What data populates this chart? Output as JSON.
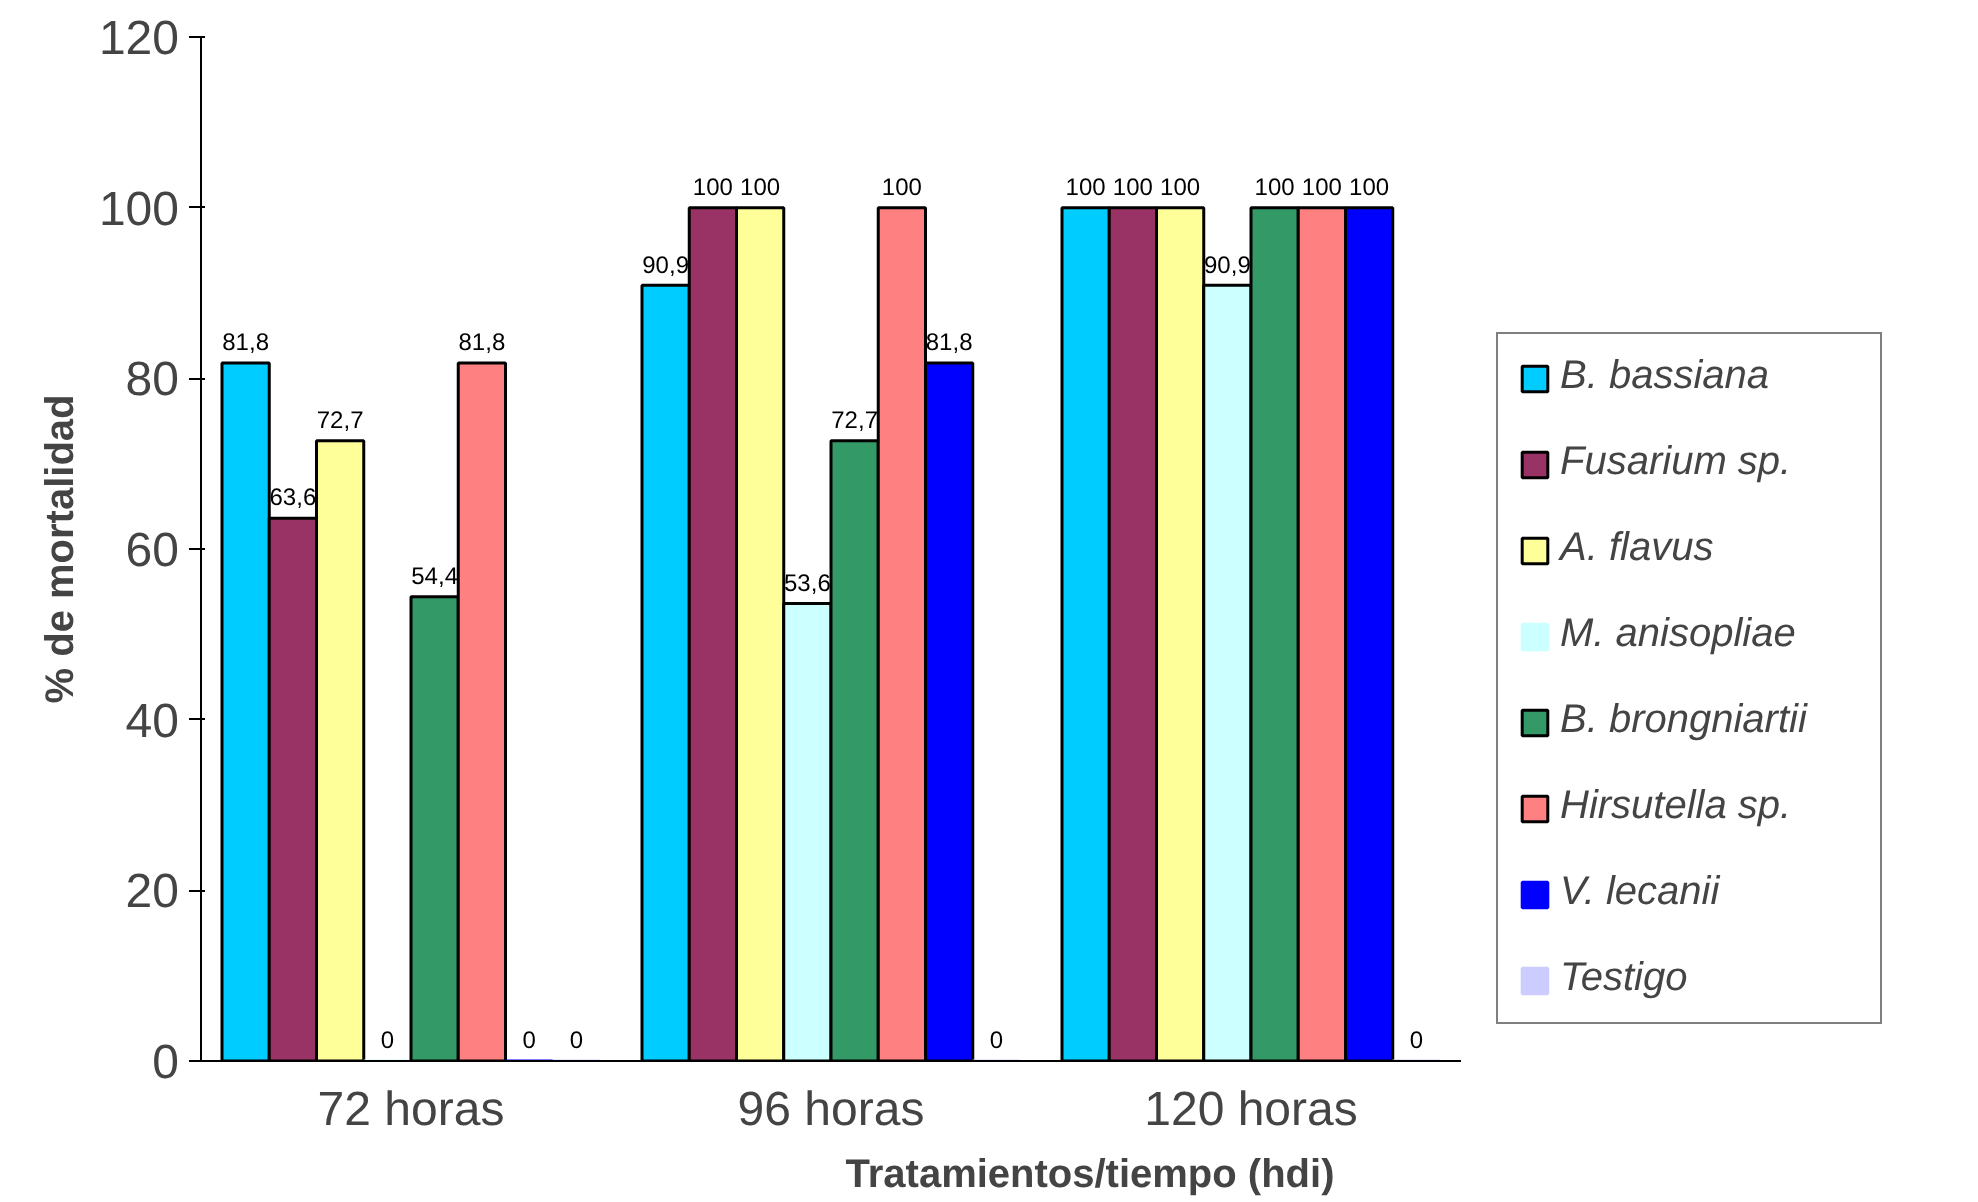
{
  "chart_data": {
    "type": "bar",
    "xlabel": "Tratamientos/tiempo (hdi)",
    "ylabel": "% de mortalidad",
    "categories": [
      "72 horas",
      "96 horas",
      "120 horas"
    ],
    "ylim": [
      0,
      120
    ],
    "yticks": [
      0,
      20,
      40,
      60,
      80,
      100,
      120
    ],
    "grid": false,
    "legend": "right",
    "series": [
      {
        "name": "B. bassiana",
        "color": "#00ccff",
        "values": [
          81.8,
          90.9,
          100
        ],
        "value_labels": [
          "81,8",
          "90,9",
          "100"
        ]
      },
      {
        "name": "Fusarium sp.",
        "color": "#993366",
        "values": [
          63.6,
          100,
          100
        ],
        "value_labels": [
          "63,6",
          "100",
          "100"
        ]
      },
      {
        "name": "A. flavus",
        "color": "#ffff99",
        "values": [
          72.7,
          100,
          100
        ],
        "value_labels": [
          "72,7",
          "100",
          "100"
        ]
      },
      {
        "name": "M. anisopliae",
        "color": "#ccffff",
        "values": [
          0,
          53.6,
          90.9
        ],
        "value_labels": [
          "0",
          "53,6",
          "90,9"
        ]
      },
      {
        "name": "B. brongniartii",
        "color": "#339966",
        "values": [
          54.4,
          72.7,
          100
        ],
        "value_labels": [
          "54,4",
          "72,7",
          "100"
        ]
      },
      {
        "name": "Hirsutella sp.",
        "color": "#ff8080",
        "values": [
          81.8,
          100,
          100
        ],
        "value_labels": [
          "81,8",
          "100",
          "100"
        ]
      },
      {
        "name": "V. lecanii",
        "color": "#0000ff",
        "values": [
          0,
          81.8,
          100
        ],
        "value_labels": [
          "0",
          "81,8",
          "100"
        ]
      },
      {
        "name": "Testigo",
        "color": "#ccccff",
        "values": [
          0,
          0,
          0
        ],
        "value_labels": [
          "0",
          "0",
          "0"
        ]
      }
    ]
  }
}
